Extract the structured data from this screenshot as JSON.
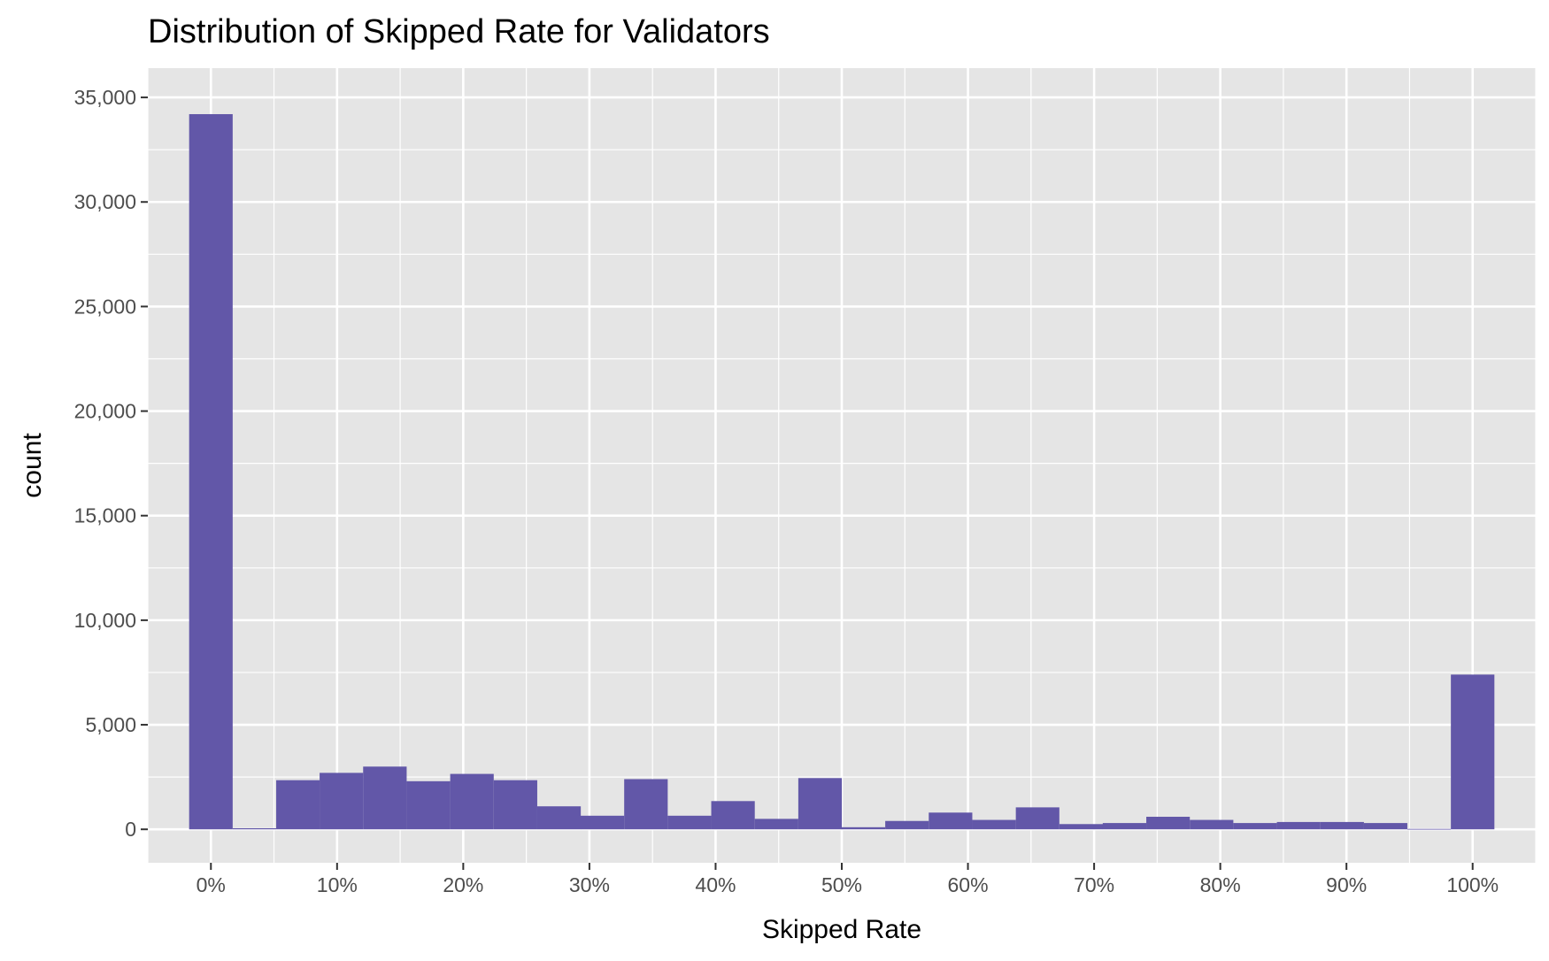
{
  "chart_data": {
    "type": "bar",
    "title": "Distribution of Skipped Rate for Validators",
    "xlabel": "Skipped Rate",
    "ylabel": "count",
    "bin_width": 0.0345,
    "x": [
      0.0,
      0.0345,
      0.069,
      0.1034,
      0.1379,
      0.1724,
      0.2069,
      0.2414,
      0.2759,
      0.3103,
      0.3448,
      0.3793,
      0.4138,
      0.4483,
      0.4828,
      0.5172,
      0.5517,
      0.5862,
      0.6207,
      0.6552,
      0.6897,
      0.7241,
      0.7586,
      0.7931,
      0.8276,
      0.8621,
      0.8966,
      0.931,
      0.9655,
      1.0
    ],
    "values": [
      34200,
      50,
      2350,
      2700,
      3000,
      2300,
      2650,
      2350,
      1100,
      650,
      2400,
      650,
      1350,
      500,
      2450,
      100,
      400,
      800,
      450,
      1050,
      250,
      300,
      600,
      450,
      300,
      350,
      350,
      300,
      20,
      7400
    ],
    "xlim": [
      -0.05,
      1.05
    ],
    "ylim": [
      -1600,
      36400
    ],
    "x_ticks": [
      0,
      0.1,
      0.2,
      0.3,
      0.4,
      0.5,
      0.6,
      0.7,
      0.8,
      0.9,
      1.0
    ],
    "x_tick_labels": [
      "0%",
      "10%",
      "20%",
      "30%",
      "40%",
      "50%",
      "60%",
      "70%",
      "80%",
      "90%",
      "100%"
    ],
    "y_ticks": [
      0,
      5000,
      10000,
      15000,
      20000,
      25000,
      30000,
      35000
    ],
    "y_tick_labels": [
      "0",
      "5,000",
      "10,000",
      "15,000",
      "20,000",
      "25,000",
      "30,000",
      "35,000"
    ],
    "grid": true,
    "legend": "none",
    "colors": {
      "bar": "#6257A8",
      "panel": "#E5E5E5",
      "grid": "#FFFFFF"
    }
  }
}
